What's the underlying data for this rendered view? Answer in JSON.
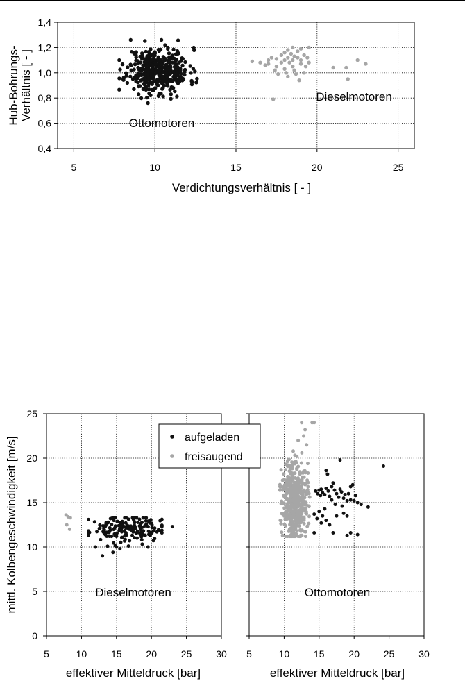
{
  "chart_data": [
    {
      "id": "compression",
      "type": "scatter",
      "xlim": [
        4,
        26
      ],
      "ylim": [
        0.4,
        1.4
      ],
      "xticks": [
        "5",
        "10",
        "15",
        "20",
        "25"
      ],
      "yticks": [
        "0,4",
        "0,6",
        "0,8",
        "1,0",
        "1,2",
        "1,4"
      ],
      "xlabel": "Verdichtungsverhältnis [ - ]",
      "ylabel": [
        "Hub-Bohrungs-",
        "Verhältnis [ - ]"
      ],
      "grid": true,
      "annotations": [
        "Ottomotoren",
        "Dieselmotoren"
      ],
      "series": [
        {
          "color": "#111111",
          "cluster": {
            "x_mean": 10.2,
            "x_sd": 0.95,
            "x_range": [
              7.8,
              12.6
            ],
            "y_mean": 1.02,
            "y_sd": 0.09,
            "y_range": [
              0.76,
              1.26
            ],
            "n": 420,
            "seed": 11
          }
        },
        {
          "color": "#a6a6a6",
          "points": [
            [
              16.0,
              1.09
            ],
            [
              16.5,
              1.08
            ],
            [
              17.0,
              1.1
            ],
            [
              17.0,
              1.07
            ],
            [
              17.2,
              1.12
            ],
            [
              17.5,
              1.11
            ],
            [
              17.5,
              1.05
            ],
            [
              17.6,
              0.99
            ],
            [
              17.8,
              1.14
            ],
            [
              17.8,
              1.08
            ],
            [
              18.0,
              1.16
            ],
            [
              18.0,
              1.1
            ],
            [
              18.0,
              1.03
            ],
            [
              18.1,
              1.0
            ],
            [
              18.2,
              1.18
            ],
            [
              18.2,
              1.12
            ],
            [
              18.3,
              1.08
            ],
            [
              18.4,
              1.15
            ],
            [
              18.5,
              1.2
            ],
            [
              18.5,
              1.1
            ],
            [
              18.5,
              1.05
            ],
            [
              18.6,
              1.02
            ],
            [
              18.7,
              0.99
            ],
            [
              18.8,
              1.17
            ],
            [
              18.8,
              1.12
            ],
            [
              19.0,
              1.19
            ],
            [
              19.0,
              1.1
            ],
            [
              19.0,
              1.07
            ],
            [
              19.2,
              1.14
            ],
            [
              19.2,
              1.0
            ],
            [
              19.4,
              1.12
            ],
            [
              19.5,
              1.2
            ],
            [
              19.5,
              1.08
            ],
            [
              18.9,
              0.94
            ],
            [
              17.3,
              0.79
            ],
            [
              21.0,
              1.04
            ],
            [
              21.8,
              1.04
            ],
            [
              21.9,
              0.95
            ],
            [
              22.5,
              1.1
            ],
            [
              23.0,
              1.07
            ],
            [
              16.8,
              1.06
            ],
            [
              17.4,
              1.02
            ],
            [
              18.6,
              1.13
            ],
            [
              19.3,
              1.05
            ],
            [
              18.2,
              0.97
            ]
          ]
        }
      ]
    },
    {
      "id": "diesel-piston",
      "type": "scatter",
      "xlim": [
        5,
        30
      ],
      "ylim": [
        0,
        25
      ],
      "xticks": [
        "5",
        "10",
        "15",
        "20",
        "25",
        "30"
      ],
      "yticks": [
        "0",
        "5",
        "10",
        "15",
        "20",
        "25"
      ],
      "xlabel": "effektiver Mitteldruck [bar]",
      "ylabel": "mittl. Kolbengeschwindigkeit [m/s]",
      "grid": true,
      "annotations": [
        "Dieselmotoren"
      ],
      "series": [
        {
          "color": "#111111",
          "cluster": {
            "x_mean": 16.5,
            "x_sd": 2.6,
            "x_range": [
              11.0,
              21.5
            ],
            "y_mean": 12.0,
            "y_sd": 0.75,
            "y_range": [
              9.0,
              13.3
            ],
            "n": 170,
            "seed": 23
          },
          "points": [
            [
              23.0,
              12.3
            ],
            [
              12.0,
              10.0
            ],
            [
              13.0,
              9.0
            ],
            [
              14.5,
              9.4
            ],
            [
              15.5,
              9.8
            ],
            [
              19.5,
              10.0
            ]
          ]
        },
        {
          "color": "#a6a6a6",
          "points": [
            [
              7.8,
              13.6
            ],
            [
              8.1,
              13.4
            ],
            [
              8.4,
              13.3
            ],
            [
              7.9,
              12.5
            ],
            [
              8.3,
              12.0
            ]
          ]
        }
      ]
    },
    {
      "id": "otto-piston",
      "type": "scatter",
      "xlim": [
        5,
        30
      ],
      "ylim": [
        0,
        25
      ],
      "xticks": [
        "5",
        "10",
        "15",
        "20",
        "25",
        "30"
      ],
      "yticks": [
        "0",
        "5",
        "10",
        "15",
        "20",
        "25"
      ],
      "xlabel": "effektiver Mitteldruck [bar]",
      "grid": true,
      "annotations": [
        "Ottomotoren"
      ],
      "series": [
        {
          "color": "#a6a6a6",
          "cluster": {
            "x_mean": 11.5,
            "x_sd": 0.9,
            "x_range": [
              9.4,
              14.0
            ],
            "y_mean": 15.5,
            "y_sd": 2.2,
            "y_range": [
              11.2,
              20.8
            ],
            "n": 480,
            "seed": 37
          },
          "points": [
            [
              12.5,
              24.0
            ],
            [
              13.0,
              23.2
            ],
            [
              14.0,
              24.0
            ],
            [
              14.3,
              24.0
            ],
            [
              12.8,
              22.5
            ],
            [
              13.2,
              21.5
            ],
            [
              12.0,
              22.0
            ]
          ]
        },
        {
          "color": "#111111",
          "points": [
            [
              14.5,
              16.3
            ],
            [
              14.8,
              16.0
            ],
            [
              15.0,
              16.4
            ],
            [
              15.2,
              15.8
            ],
            [
              15.3,
              16.5
            ],
            [
              15.5,
              16.1
            ],
            [
              15.8,
              15.9
            ],
            [
              16.0,
              16.6
            ],
            [
              16.3,
              16.3
            ],
            [
              16.5,
              15.7
            ],
            [
              16.8,
              16.8
            ],
            [
              17.0,
              17.2
            ],
            [
              17.2,
              16.4
            ],
            [
              17.5,
              16.0
            ],
            [
              17.8,
              15.6
            ],
            [
              18.0,
              16.5
            ],
            [
              18.2,
              16.2
            ],
            [
              18.5,
              15.5
            ],
            [
              18.7,
              15.9
            ],
            [
              19.0,
              15.2
            ],
            [
              19.2,
              16.0
            ],
            [
              19.5,
              15.3
            ],
            [
              19.8,
              17.0
            ],
            [
              20.0,
              15.2
            ],
            [
              20.5,
              15.0
            ],
            [
              21.0,
              14.8
            ],
            [
              22.0,
              14.5
            ],
            [
              16.0,
              18.6
            ],
            [
              16.2,
              18.2
            ],
            [
              18.0,
              19.8
            ],
            [
              24.2,
              19.1
            ],
            [
              15.0,
              14.0
            ],
            [
              15.5,
              13.5
            ],
            [
              15.3,
              12.7
            ],
            [
              16.0,
              13.0
            ],
            [
              16.5,
              12.5
            ],
            [
              14.3,
              13.7
            ],
            [
              14.7,
              13.2
            ],
            [
              17.0,
              11.6
            ],
            [
              19.0,
              11.3
            ],
            [
              19.5,
              11.6
            ],
            [
              20.5,
              11.4
            ],
            [
              14.3,
              11.6
            ],
            [
              15.8,
              14.3
            ],
            [
              17.5,
              13.5
            ],
            [
              18.5,
              13.8
            ],
            [
              19.0,
              13.5
            ],
            [
              17.3,
              14.8
            ],
            [
              18.3,
              14.6
            ],
            [
              16.8,
              15.3
            ],
            [
              19.5,
              16.8
            ],
            [
              20.2,
              15.8
            ]
          ]
        }
      ]
    }
  ],
  "legend": {
    "items": [
      {
        "label": "aufgeladen",
        "color": "#111111"
      },
      {
        "label": "freisaugend",
        "color": "#a6a6a6"
      }
    ]
  }
}
